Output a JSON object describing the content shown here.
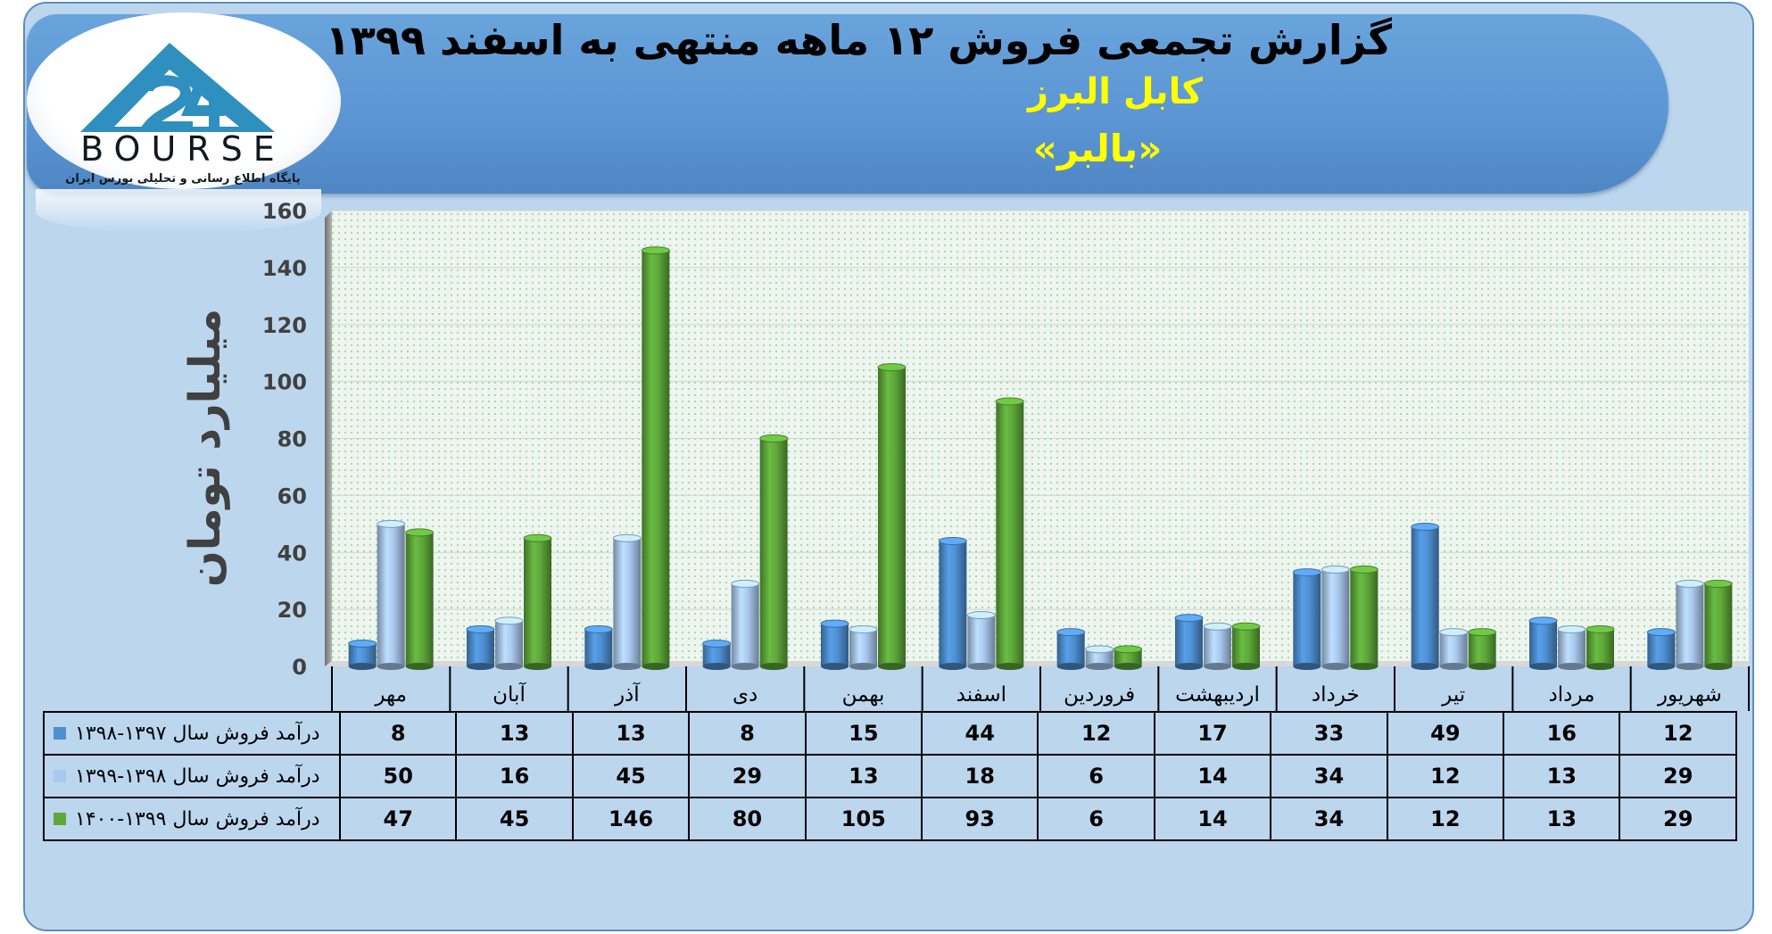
{
  "header": {
    "title": "گزارش تجمعی فروش ۱۲ ماهه منتهی به اسفند ۱۳۹۹",
    "company": "کابل البرز",
    "ticker": "«بالبر»"
  },
  "logo": {
    "text": "BOURSE",
    "subtitle": "پایگاه اطلاع رسانی و تحلیلی بورس ایران"
  },
  "chart_data": {
    "type": "bar",
    "title": "گزارش تجمعی فروش ۱۲ ماهه منتهی به اسفند ۱۳۹۹",
    "ylabel": "میلیارد تومان",
    "xlabel": "",
    "ylim": [
      0,
      160
    ],
    "yticks": [
      0,
      20,
      40,
      60,
      80,
      100,
      120,
      140,
      160
    ],
    "grid": true,
    "legend": "table-left",
    "categories": [
      "مهر",
      "آبان",
      "آذر",
      "دی",
      "بهمن",
      "اسفند",
      "فروردین",
      "اردیبهشت",
      "خرداد",
      "تیر",
      "مرداد",
      "شهریور"
    ],
    "series": [
      {
        "name": "درآمد فروش سال ۱۳۹۷-۱۳۹۸",
        "color": "#4e8fd1",
        "values": [
          8,
          13,
          13,
          8,
          15,
          44,
          12,
          17,
          33,
          49,
          16,
          12
        ]
      },
      {
        "name": "درآمد فروش سال ۱۳۹۸-۱۳۹۹",
        "color": "#a9c8ee",
        "values": [
          50,
          16,
          45,
          29,
          13,
          18,
          6,
          14,
          34,
          12,
          13,
          29
        ]
      },
      {
        "name": "درآمد فروش سال ۱۳۹۹-۱۴۰۰",
        "color": "#5ea83a",
        "values": [
          47,
          45,
          146,
          80,
          105,
          93,
          6,
          14,
          34,
          12,
          13,
          29
        ]
      }
    ]
  },
  "colors": {
    "background": "#bcd6ee",
    "banner": "#5b95d3",
    "title_accent": "#ffff00",
    "plot_area": "#edf5ee"
  }
}
